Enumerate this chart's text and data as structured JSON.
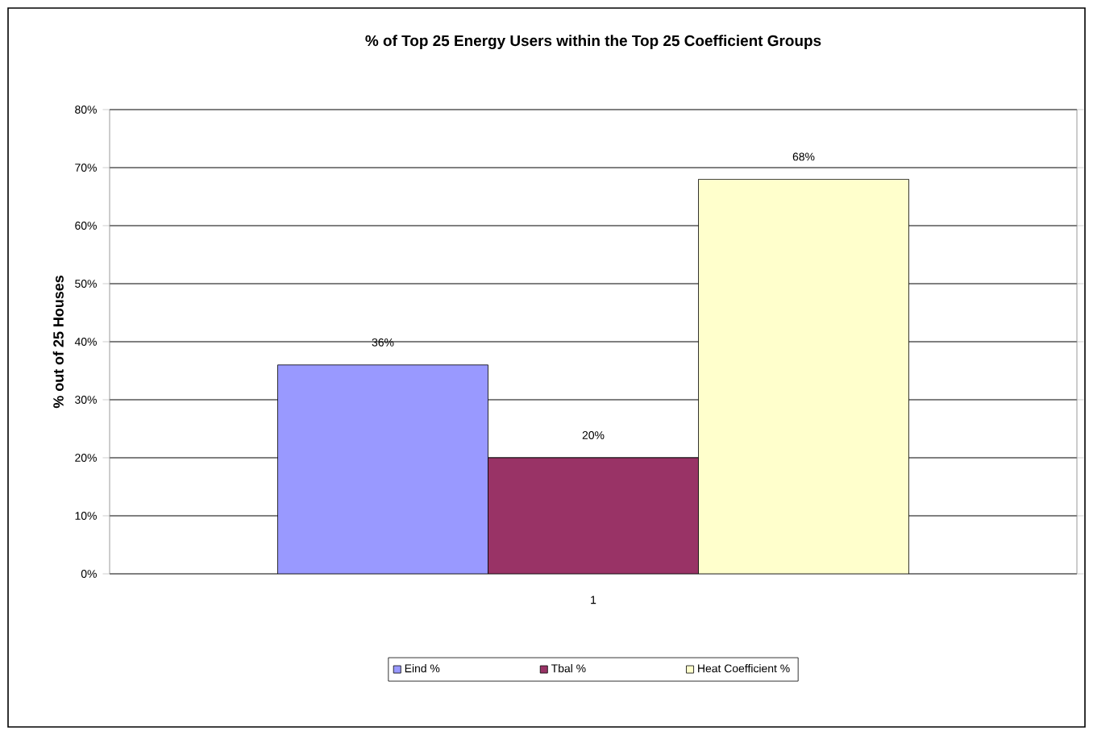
{
  "chart_data": {
    "type": "bar",
    "title": "% of Top 25 Energy Users within the Top 25 Coefficient Groups",
    "ylabel": "% out of 25 Houses",
    "categories": [
      "1"
    ],
    "series": [
      {
        "name": "Eind %",
        "color": "#9999ff",
        "values": [
          36
        ],
        "value_labels": [
          "36%"
        ]
      },
      {
        "name": "Tbal %",
        "color": "#993366",
        "values": [
          20
        ],
        "value_labels": [
          "20%"
        ]
      },
      {
        "name": "Heat Coefficient %",
        "color": "#ffffcc",
        "values": [
          68
        ],
        "value_labels": [
          "68%"
        ]
      }
    ],
    "ylim": [
      0,
      80
    ],
    "yticks": [
      {
        "value": 0,
        "label": "0%"
      },
      {
        "value": 10,
        "label": "10%"
      },
      {
        "value": 20,
        "label": "20%"
      },
      {
        "value": 30,
        "label": "30%"
      },
      {
        "value": 40,
        "label": "40%"
      },
      {
        "value": 50,
        "label": "50%"
      },
      {
        "value": 60,
        "label": "60%"
      },
      {
        "value": 70,
        "label": "70%"
      },
      {
        "value": 80,
        "label": "80%"
      }
    ],
    "grid": "y",
    "legend": "bottom"
  }
}
